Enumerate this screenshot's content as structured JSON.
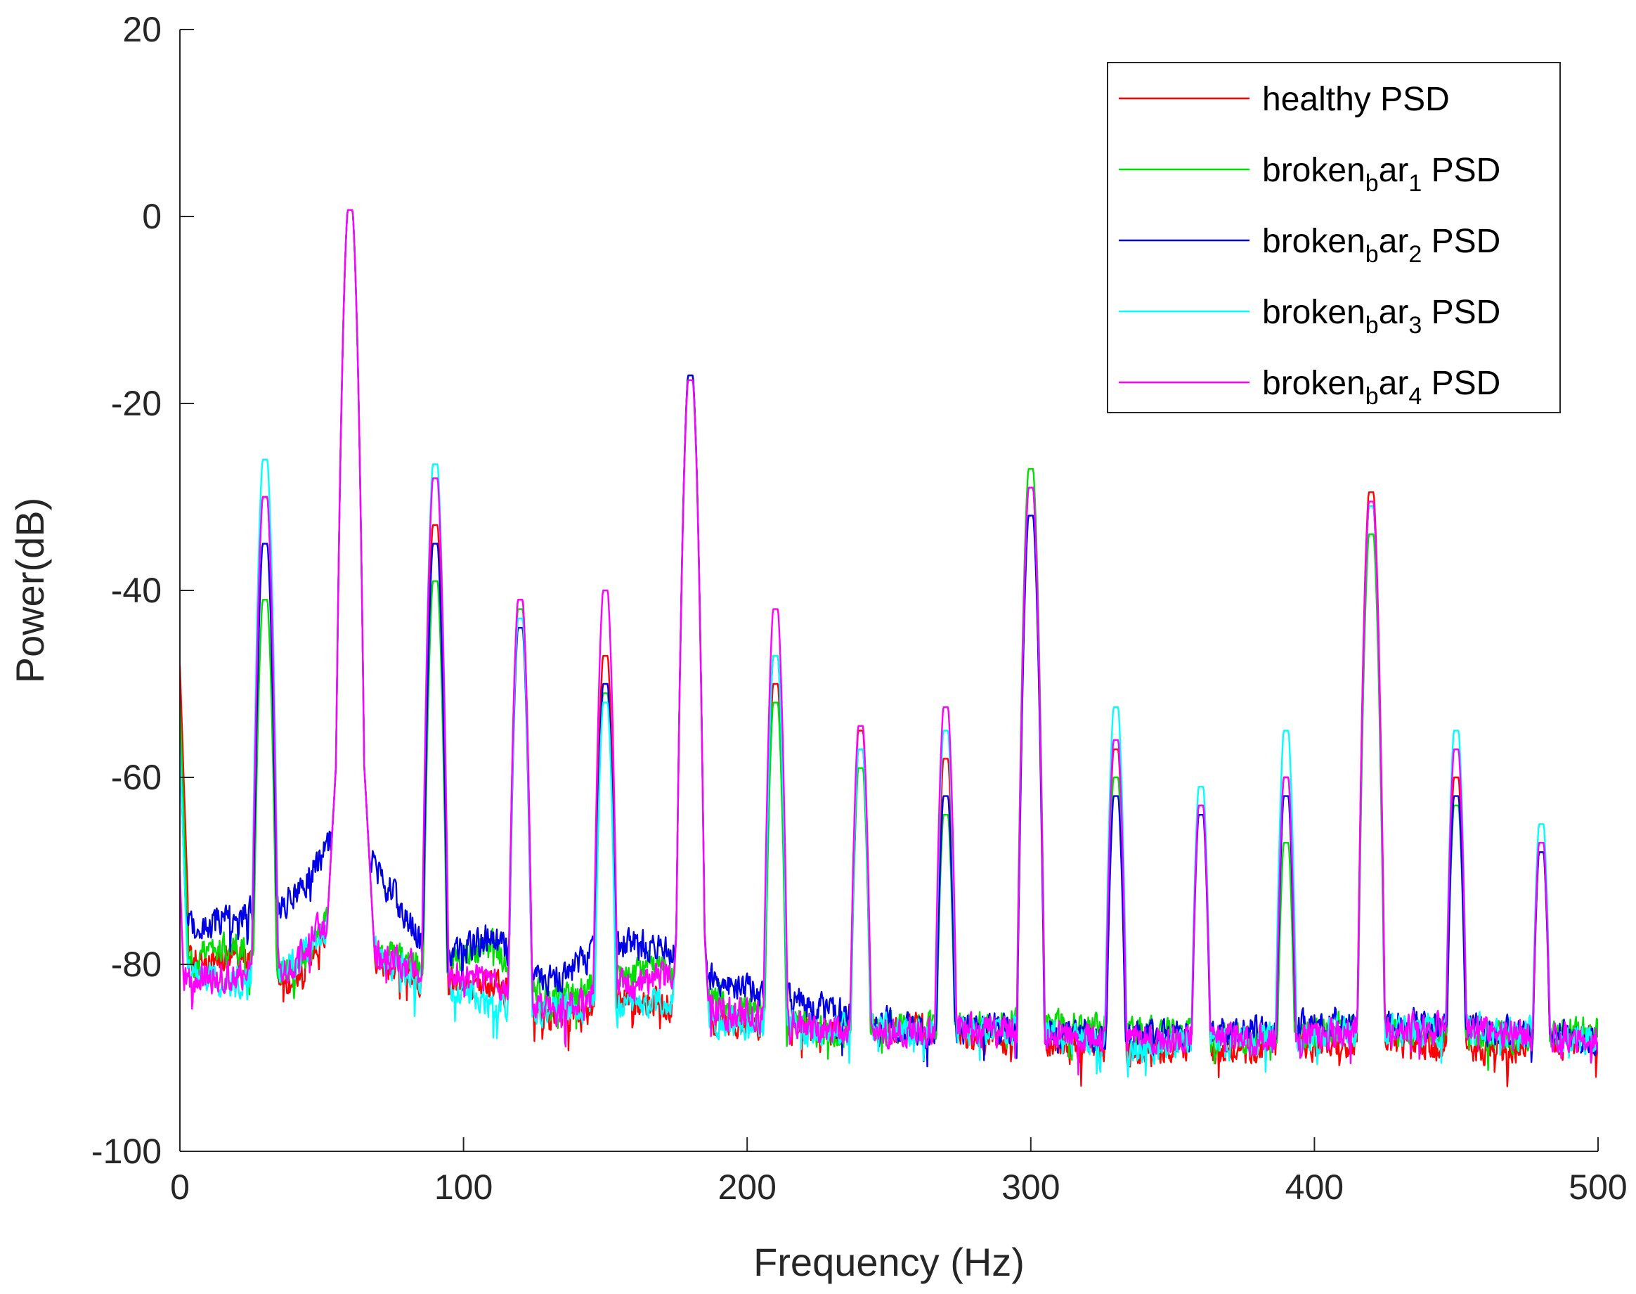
{
  "chart_data": {
    "type": "line",
    "title": "",
    "xlabel": "Frequency (Hz)",
    "ylabel": "Power(dB)",
    "xlim": [
      0,
      500
    ],
    "ylim": [
      -100,
      20
    ],
    "xticks": [
      0,
      100,
      200,
      300,
      400,
      500
    ],
    "yticks": [
      -100,
      -80,
      -60,
      -40,
      -20,
      0,
      20
    ],
    "grid": false,
    "legend_position": "top-right",
    "harmonics_hz": [
      30,
      60,
      90,
      120,
      150,
      180,
      210,
      240,
      270,
      300,
      330,
      360,
      390,
      420,
      450,
      480
    ],
    "series": [
      {
        "name": "healthy PSD",
        "legend": {
          "pre": "healthy PSD",
          "sub": "",
          "post": ""
        },
        "color": "#ff0000",
        "start_db": -48,
        "floor": [
          [
            0,
            -80
          ],
          [
            20,
            -79
          ],
          [
            40,
            -82
          ],
          [
            55,
            -75
          ],
          [
            70,
            -80
          ],
          [
            90,
            -82
          ],
          [
            110,
            -82
          ],
          [
            130,
            -86
          ],
          [
            150,
            -84
          ],
          [
            170,
            -84
          ],
          [
            190,
            -86
          ],
          [
            230,
            -87
          ],
          [
            260,
            -87
          ],
          [
            300,
            -88
          ],
          [
            330,
            -89
          ],
          [
            380,
            -89
          ],
          [
            420,
            -88
          ],
          [
            460,
            -89
          ],
          [
            500,
            -88
          ]
        ],
        "peaks": [
          -30,
          0.7,
          -33,
          -41,
          -47,
          -17,
          -50,
          -55,
          -58,
          -29,
          -57,
          -63,
          -60,
          -29.5,
          -60,
          -68
        ]
      },
      {
        "name": "broken_bar_1 PSD",
        "legend": {
          "pre": "broken",
          "sub": "b",
          "post": "ar",
          "sub2": "1",
          "tail": " PSD"
        },
        "color": "#00e000",
        "start_db": -52,
        "floor": [
          [
            0,
            -80
          ],
          [
            20,
            -78
          ],
          [
            40,
            -81
          ],
          [
            55,
            -74
          ],
          [
            70,
            -79
          ],
          [
            90,
            -81
          ],
          [
            110,
            -78
          ],
          [
            130,
            -84
          ],
          [
            150,
            -82
          ],
          [
            170,
            -80
          ],
          [
            190,
            -84
          ],
          [
            230,
            -87
          ],
          [
            260,
            -87
          ],
          [
            300,
            -86
          ],
          [
            330,
            -87
          ],
          [
            380,
            -88
          ],
          [
            420,
            -86
          ],
          [
            460,
            -88
          ],
          [
            500,
            -87
          ]
        ],
        "peaks": [
          -41,
          0.7,
          -39,
          -42,
          -51,
          -17,
          -52,
          -59,
          -64,
          -27,
          -60,
          -63,
          -67,
          -34,
          -63,
          -68
        ]
      },
      {
        "name": "broken_bar_2 PSD",
        "legend": {
          "pre": "broken",
          "sub": "b",
          "post": "ar",
          "sub2": "2",
          "tail": " PSD"
        },
        "color": "#0000e6",
        "start_db": -56,
        "floor": [
          [
            0,
            -76
          ],
          [
            20,
            -75
          ],
          [
            40,
            -73
          ],
          [
            55,
            -66
          ],
          [
            70,
            -70
          ],
          [
            90,
            -80
          ],
          [
            110,
            -77
          ],
          [
            130,
            -82
          ],
          [
            150,
            -78
          ],
          [
            170,
            -78
          ],
          [
            190,
            -82
          ],
          [
            230,
            -85
          ],
          [
            260,
            -87
          ],
          [
            300,
            -87
          ],
          [
            330,
            -88
          ],
          [
            380,
            -87
          ],
          [
            420,
            -86
          ],
          [
            460,
            -87
          ],
          [
            500,
            -88
          ]
        ],
        "peaks": [
          -35,
          0.7,
          -35,
          -44,
          -50,
          -17,
          -47,
          -57,
          -62,
          -32,
          -62,
          -64,
          -62,
          -31,
          -62,
          -68
        ]
      },
      {
        "name": "broken_bar_3 PSD",
        "legend": {
          "pre": "broken",
          "sub": "b",
          "post": "ar",
          "sub2": "3",
          "tail": " PSD"
        },
        "color": "#00ffff",
        "start_db": -56,
        "floor": [
          [
            0,
            -81
          ],
          [
            20,
            -82
          ],
          [
            40,
            -80
          ],
          [
            55,
            -75
          ],
          [
            70,
            -79
          ],
          [
            90,
            -82
          ],
          [
            110,
            -84
          ],
          [
            130,
            -85
          ],
          [
            150,
            -84
          ],
          [
            170,
            -84
          ],
          [
            190,
            -86
          ],
          [
            230,
            -87
          ],
          [
            260,
            -87
          ],
          [
            300,
            -87
          ],
          [
            330,
            -89
          ],
          [
            380,
            -88
          ],
          [
            420,
            -87
          ],
          [
            460,
            -87
          ],
          [
            500,
            -88
          ]
        ],
        "peaks": [
          -26,
          0.7,
          -26.5,
          -43,
          -52,
          -17.5,
          -47,
          -57,
          -55,
          -29,
          -52.5,
          -61,
          -55,
          -31,
          -55,
          -65
        ]
      },
      {
        "name": "broken_bar_4 PSD",
        "legend": {
          "pre": "broken",
          "sub": "b",
          "post": "ar",
          "sub2": "4",
          "tail": " PSD"
        },
        "color": "#ff00ff",
        "start_db": -70,
        "floor": [
          [
            0,
            -82
          ],
          [
            20,
            -81
          ],
          [
            40,
            -80
          ],
          [
            55,
            -74
          ],
          [
            70,
            -79
          ],
          [
            90,
            -81
          ],
          [
            110,
            -82
          ],
          [
            130,
            -85
          ],
          [
            150,
            -83
          ],
          [
            170,
            -81
          ],
          [
            190,
            -85
          ],
          [
            230,
            -87
          ],
          [
            260,
            -87
          ],
          [
            300,
            -87
          ],
          [
            330,
            -88
          ],
          [
            380,
            -88
          ],
          [
            420,
            -87
          ],
          [
            460,
            -87
          ],
          [
            500,
            -88
          ]
        ],
        "peaks": [
          -30,
          0.7,
          -28,
          -41,
          -40,
          -17.5,
          -42,
          -54.5,
          -52.5,
          -29,
          -56,
          -63,
          -60,
          -30.5,
          -57,
          -67
        ]
      }
    ]
  }
}
